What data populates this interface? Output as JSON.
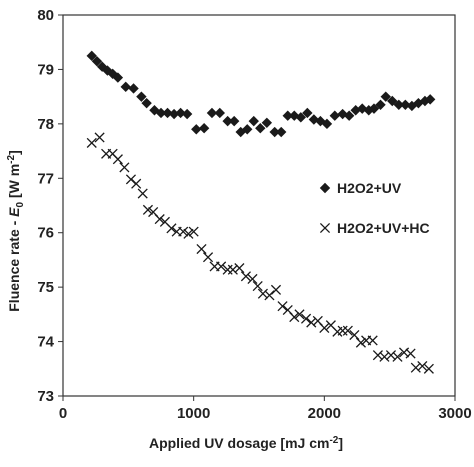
{
  "chart_data": {
    "type": "scatter",
    "xlabel_main": "Applied UV dosage [mJ cm",
    "xlabel_sup": "-2",
    "xlabel_end": "]",
    "ylabel_main": "Fluence rate - ",
    "ylabel_ital": "E",
    "ylabel_sub": "0",
    "ylabel_unit_main": " [W m",
    "ylabel_unit_sup": "-2",
    "ylabel_unit_end": "]",
    "xlim": [
      0,
      3000
    ],
    "ylim": [
      73,
      80
    ],
    "xticks": [
      "0",
      "1000",
      "2000",
      "3000"
    ],
    "yticks": [
      "73",
      "74",
      "75",
      "76",
      "77",
      "78",
      "79",
      "80"
    ],
    "legend_position": "right",
    "series": [
      {
        "name": "H2O2+UV",
        "marker": "diamond",
        "x": [
          220,
          260,
          300,
          340,
          380,
          420,
          480,
          540,
          600,
          640,
          700,
          750,
          800,
          850,
          900,
          950,
          1020,
          1080,
          1140,
          1200,
          1260,
          1310,
          1360,
          1410,
          1460,
          1510,
          1560,
          1620,
          1670,
          1720,
          1770,
          1820,
          1870,
          1920,
          1970,
          2020,
          2080,
          2140,
          2190,
          2240,
          2290,
          2340,
          2380,
          2430,
          2470,
          2520,
          2570,
          2620,
          2670,
          2720,
          2770,
          2810
        ],
        "y": [
          79.25,
          79.15,
          79.05,
          78.98,
          78.92,
          78.85,
          78.68,
          78.65,
          78.5,
          78.38,
          78.25,
          78.2,
          78.2,
          78.18,
          78.2,
          78.18,
          77.9,
          77.92,
          78.2,
          78.2,
          78.05,
          78.05,
          77.85,
          77.9,
          78.05,
          77.92,
          78.02,
          77.85,
          77.85,
          78.15,
          78.15,
          78.12,
          78.2,
          78.08,
          78.05,
          78.0,
          78.15,
          78.18,
          78.15,
          78.25,
          78.28,
          78.25,
          78.28,
          78.35,
          78.5,
          78.42,
          78.35,
          78.35,
          78.33,
          78.38,
          78.42,
          78.45
        ]
      },
      {
        "name": "H2O2+UV+HC",
        "marker": "x",
        "x": [
          220,
          280,
          330,
          380,
          420,
          470,
          520,
          560,
          610,
          650,
          690,
          740,
          780,
          830,
          870,
          920,
          960,
          1000,
          1060,
          1110,
          1160,
          1210,
          1260,
          1300,
          1350,
          1400,
          1450,
          1490,
          1530,
          1580,
          1630,
          1680,
          1720,
          1770,
          1810,
          1860,
          1900,
          1950,
          2000,
          2050,
          2100,
          2140,
          2180,
          2230,
          2280,
          2320,
          2370,
          2410,
          2460,
          2510,
          2560,
          2610,
          2660,
          2700,
          2750,
          2800
        ],
        "y": [
          77.65,
          77.75,
          77.45,
          77.45,
          77.35,
          77.2,
          76.98,
          76.9,
          76.72,
          76.42,
          76.38,
          76.25,
          76.2,
          76.08,
          76.02,
          76.02,
          75.98,
          76.02,
          75.7,
          75.55,
          75.38,
          75.38,
          75.32,
          75.32,
          75.35,
          75.2,
          75.15,
          75.02,
          74.88,
          74.85,
          74.95,
          74.65,
          74.58,
          74.45,
          74.5,
          74.42,
          74.35,
          74.38,
          74.25,
          74.3,
          74.18,
          74.2,
          74.2,
          74.12,
          73.98,
          74.02,
          74.02,
          73.75,
          73.72,
          73.75,
          73.72,
          73.8,
          73.78,
          73.52,
          73.55,
          73.5
        ]
      }
    ]
  }
}
